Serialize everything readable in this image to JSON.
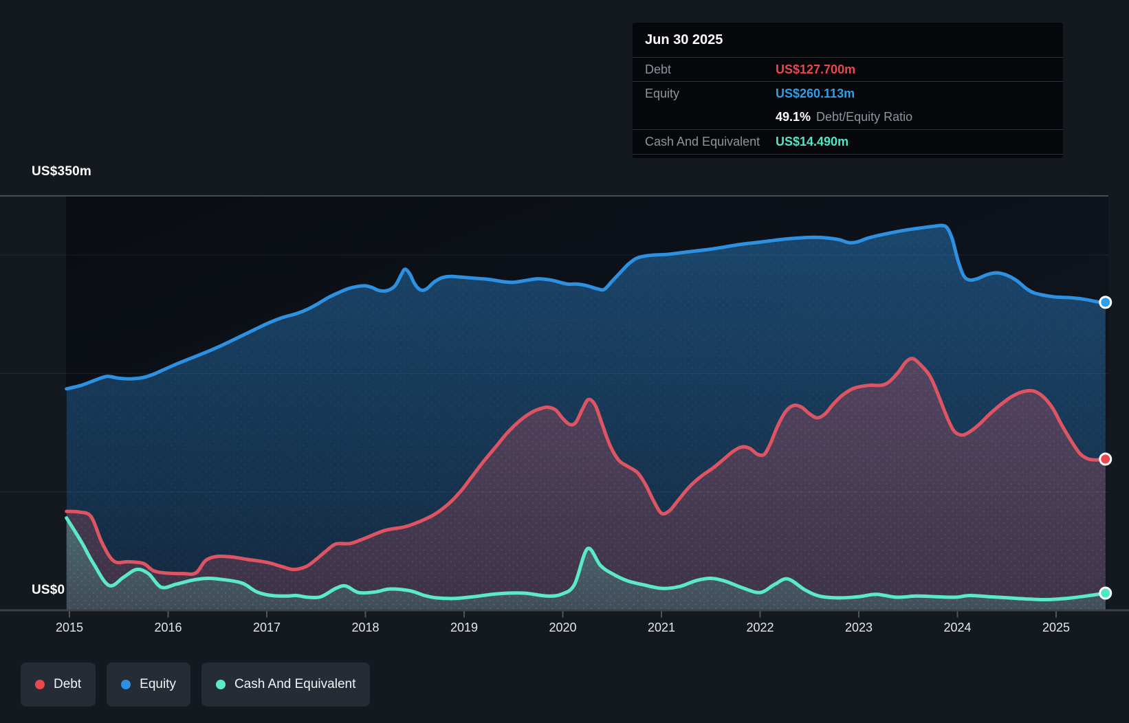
{
  "y_axis": {
    "top_label": "US$350m",
    "bottom_label": "US$0"
  },
  "x_axis": {
    "labels": [
      "2015",
      "2016",
      "2017",
      "2018",
      "2019",
      "2020",
      "2021",
      "2022",
      "2023",
      "2024",
      "2025"
    ]
  },
  "tooltip": {
    "date": "Jun 30 2025",
    "debt_label": "Debt",
    "debt_value": "US$127.700m",
    "equity_label": "Equity",
    "equity_value": "US$260.113m",
    "ratio_value": "49.1%",
    "ratio_label": "Debt/Equity Ratio",
    "cash_label": "Cash And Equivalent",
    "cash_value": "US$14.490m"
  },
  "legend": {
    "debt": "Debt",
    "equity": "Equity",
    "cash": "Cash And Equivalent"
  },
  "colors": {
    "page_bg": "#14191f",
    "plot_bg_top": "#0a0d13",
    "plot_bg_bottom": "#111722",
    "debt_line": "#dd5462",
    "debt_accent": "#e8484e",
    "equity_line": "#2e90e0",
    "equity_accent": "#2f9fe8",
    "cash_line": "#5ce9c7",
    "cash_accent": "#4ce9c4",
    "grid_faint": "rgba(205,216,230,0.09)",
    "grid_top": "#454c55",
    "axis_line": "#3b424a",
    "tick": "#4d545c"
  },
  "chart_data": {
    "type": "area",
    "x_domain": [
      2015,
      2025.5
    ],
    "y_domain": [
      0,
      350
    ],
    "y_unit": "US$m",
    "y_top_labeled_line": 350,
    "y_gridlines": [
      100,
      200,
      300
    ],
    "x_ticks": [
      2015,
      2016,
      2017,
      2018,
      2019,
      2020,
      2021,
      2022,
      2023,
      2024,
      2025
    ],
    "legend_position": "bottom-left",
    "series": [
      {
        "name": "Equity",
        "color": "#2e90e0",
        "end_value": 260.113,
        "points": [
          [
            2014.97,
            187
          ],
          [
            2015.12,
            190
          ],
          [
            2015.25,
            194
          ],
          [
            2015.38,
            197.5
          ],
          [
            2015.5,
            196
          ],
          [
            2015.62,
            195.5
          ],
          [
            2015.74,
            196.5
          ],
          [
            2015.84,
            199
          ],
          [
            2015.95,
            203
          ],
          [
            2016.1,
            208.5
          ],
          [
            2016.25,
            213.5
          ],
          [
            2016.4,
            218.5
          ],
          [
            2016.55,
            224
          ],
          [
            2016.7,
            230
          ],
          [
            2016.85,
            236
          ],
          [
            2017.0,
            242
          ],
          [
            2017.15,
            247
          ],
          [
            2017.3,
            250.5
          ],
          [
            2017.42,
            254.5
          ],
          [
            2017.52,
            259
          ],
          [
            2017.62,
            264
          ],
          [
            2017.72,
            268
          ],
          [
            2017.82,
            271.5
          ],
          [
            2017.92,
            273.5
          ],
          [
            2018.0,
            274
          ],
          [
            2018.07,
            272.5
          ],
          [
            2018.14,
            270
          ],
          [
            2018.22,
            270
          ],
          [
            2018.3,
            274
          ],
          [
            2018.36,
            283
          ],
          [
            2018.4,
            288
          ],
          [
            2018.45,
            284
          ],
          [
            2018.5,
            275.5
          ],
          [
            2018.56,
            270.5
          ],
          [
            2018.62,
            271.5
          ],
          [
            2018.7,
            277.5
          ],
          [
            2018.78,
            281
          ],
          [
            2018.86,
            282
          ],
          [
            2018.95,
            281.5
          ],
          [
            2019.1,
            280.5
          ],
          [
            2019.25,
            279.5
          ],
          [
            2019.4,
            277.5
          ],
          [
            2019.5,
            277
          ],
          [
            2019.62,
            278.5
          ],
          [
            2019.75,
            280
          ],
          [
            2019.87,
            279
          ],
          [
            2019.95,
            277.5
          ],
          [
            2020.05,
            275.5
          ],
          [
            2020.15,
            275.5
          ],
          [
            2020.25,
            274
          ],
          [
            2020.35,
            271.5
          ],
          [
            2020.42,
            271
          ],
          [
            2020.5,
            278
          ],
          [
            2020.58,
            285
          ],
          [
            2020.66,
            292
          ],
          [
            2020.74,
            297
          ],
          [
            2020.82,
            299
          ],
          [
            2020.92,
            300
          ],
          [
            2021.05,
            300.5
          ],
          [
            2021.2,
            302
          ],
          [
            2021.35,
            303.5
          ],
          [
            2021.5,
            305
          ],
          [
            2021.65,
            307
          ],
          [
            2021.8,
            309
          ],
          [
            2021.95,
            310.5
          ],
          [
            2022.1,
            312
          ],
          [
            2022.25,
            313.5
          ],
          [
            2022.4,
            314.5
          ],
          [
            2022.55,
            315
          ],
          [
            2022.68,
            314.5
          ],
          [
            2022.8,
            313
          ],
          [
            2022.9,
            310.5
          ],
          [
            2022.98,
            311
          ],
          [
            2023.1,
            314.5
          ],
          [
            2023.25,
            317.5
          ],
          [
            2023.4,
            320
          ],
          [
            2023.55,
            322
          ],
          [
            2023.68,
            323.5
          ],
          [
            2023.78,
            324.5
          ],
          [
            2023.85,
            325
          ],
          [
            2023.9,
            322.5
          ],
          [
            2023.95,
            313
          ],
          [
            2024.0,
            297
          ],
          [
            2024.06,
            283
          ],
          [
            2024.12,
            279
          ],
          [
            2024.2,
            280
          ],
          [
            2024.3,
            283.5
          ],
          [
            2024.4,
            285
          ],
          [
            2024.5,
            283
          ],
          [
            2024.6,
            278.5
          ],
          [
            2024.7,
            271.5
          ],
          [
            2024.78,
            268
          ],
          [
            2024.88,
            266
          ],
          [
            2025.0,
            264.5
          ],
          [
            2025.15,
            264
          ],
          [
            2025.3,
            262.5
          ],
          [
            2025.42,
            260.5
          ],
          [
            2025.5,
            260.113
          ]
        ]
      },
      {
        "name": "Debt",
        "color": "#dd5462",
        "end_value": 127.7,
        "points": [
          [
            2014.97,
            83.5
          ],
          [
            2015.1,
            83
          ],
          [
            2015.22,
            79
          ],
          [
            2015.33,
            57
          ],
          [
            2015.45,
            41.5
          ],
          [
            2015.6,
            41
          ],
          [
            2015.75,
            39.5
          ],
          [
            2015.85,
            33.5
          ],
          [
            2015.97,
            31.5
          ],
          [
            2016.15,
            31
          ],
          [
            2016.28,
            31.5
          ],
          [
            2016.38,
            42
          ],
          [
            2016.5,
            45.5
          ],
          [
            2016.65,
            45
          ],
          [
            2016.8,
            43
          ],
          [
            2017.0,
            40.5
          ],
          [
            2017.15,
            37
          ],
          [
            2017.27,
            34.5
          ],
          [
            2017.4,
            37
          ],
          [
            2017.5,
            43
          ],
          [
            2017.6,
            50
          ],
          [
            2017.7,
            56
          ],
          [
            2017.85,
            56.5
          ],
          [
            2018.0,
            61
          ],
          [
            2018.2,
            67.5
          ],
          [
            2018.4,
            70.5
          ],
          [
            2018.55,
            75
          ],
          [
            2018.7,
            81
          ],
          [
            2018.85,
            90.5
          ],
          [
            2018.97,
            101
          ],
          [
            2019.08,
            113
          ],
          [
            2019.2,
            126
          ],
          [
            2019.33,
            139
          ],
          [
            2019.45,
            151
          ],
          [
            2019.57,
            160.5
          ],
          [
            2019.68,
            167
          ],
          [
            2019.78,
            170.5
          ],
          [
            2019.85,
            171.5
          ],
          [
            2019.93,
            169
          ],
          [
            2020.0,
            162
          ],
          [
            2020.07,
            157
          ],
          [
            2020.13,
            158.5
          ],
          [
            2020.2,
            170
          ],
          [
            2020.26,
            178
          ],
          [
            2020.33,
            173
          ],
          [
            2020.4,
            157
          ],
          [
            2020.48,
            139
          ],
          [
            2020.57,
            126.5
          ],
          [
            2020.67,
            121
          ],
          [
            2020.76,
            116
          ],
          [
            2020.84,
            106
          ],
          [
            2020.92,
            92.5
          ],
          [
            2021.0,
            82
          ],
          [
            2021.08,
            84
          ],
          [
            2021.17,
            93
          ],
          [
            2021.28,
            104
          ],
          [
            2021.4,
            113
          ],
          [
            2021.52,
            120
          ],
          [
            2021.63,
            127.5
          ],
          [
            2021.73,
            134.5
          ],
          [
            2021.82,
            138
          ],
          [
            2021.9,
            136.5
          ],
          [
            2021.97,
            132
          ],
          [
            2022.04,
            131.5
          ],
          [
            2022.1,
            140
          ],
          [
            2022.18,
            156
          ],
          [
            2022.26,
            168
          ],
          [
            2022.34,
            173
          ],
          [
            2022.42,
            171.5
          ],
          [
            2022.5,
            166
          ],
          [
            2022.58,
            162.5
          ],
          [
            2022.66,
            166
          ],
          [
            2022.74,
            174
          ],
          [
            2022.84,
            182
          ],
          [
            2022.95,
            187.5
          ],
          [
            2023.1,
            190
          ],
          [
            2023.22,
            190
          ],
          [
            2023.3,
            192.5
          ],
          [
            2023.4,
            201
          ],
          [
            2023.48,
            210
          ],
          [
            2023.55,
            212.5
          ],
          [
            2023.63,
            207
          ],
          [
            2023.72,
            198
          ],
          [
            2023.8,
            183
          ],
          [
            2023.88,
            166
          ],
          [
            2023.96,
            152
          ],
          [
            2024.04,
            148
          ],
          [
            2024.12,
            150.5
          ],
          [
            2024.22,
            157
          ],
          [
            2024.33,
            166
          ],
          [
            2024.45,
            174.5
          ],
          [
            2024.56,
            181
          ],
          [
            2024.68,
            185
          ],
          [
            2024.78,
            185
          ],
          [
            2024.88,
            179.5
          ],
          [
            2024.97,
            170
          ],
          [
            2025.06,
            156
          ],
          [
            2025.15,
            143.5
          ],
          [
            2025.24,
            132.5
          ],
          [
            2025.32,
            128
          ],
          [
            2025.4,
            127
          ],
          [
            2025.5,
            127.7
          ]
        ]
      },
      {
        "name": "Cash And Equivalent",
        "color": "#5ce9c7",
        "end_value": 14.49,
        "points": [
          [
            2014.97,
            78
          ],
          [
            2015.12,
            58
          ],
          [
            2015.24,
            40
          ],
          [
            2015.4,
            21
          ],
          [
            2015.55,
            28
          ],
          [
            2015.68,
            34.5
          ],
          [
            2015.8,
            31
          ],
          [
            2015.93,
            19.5
          ],
          [
            2016.08,
            22
          ],
          [
            2016.25,
            25.5
          ],
          [
            2016.4,
            27
          ],
          [
            2016.55,
            26
          ],
          [
            2016.75,
            23
          ],
          [
            2016.9,
            15.5
          ],
          [
            2017.05,
            12.5
          ],
          [
            2017.2,
            12
          ],
          [
            2017.3,
            12.5
          ],
          [
            2017.42,
            11
          ],
          [
            2017.55,
            11.5
          ],
          [
            2017.7,
            18.5
          ],
          [
            2017.8,
            20.5
          ],
          [
            2017.93,
            15
          ],
          [
            2018.1,
            15.5
          ],
          [
            2018.25,
            18
          ],
          [
            2018.45,
            16.5
          ],
          [
            2018.6,
            12.5
          ],
          [
            2018.72,
            10.5
          ],
          [
            2018.9,
            10
          ],
          [
            2019.1,
            11.5
          ],
          [
            2019.35,
            14
          ],
          [
            2019.6,
            14.5
          ],
          [
            2019.85,
            12
          ],
          [
            2020.0,
            14
          ],
          [
            2020.12,
            22
          ],
          [
            2020.25,
            52
          ],
          [
            2020.38,
            38
          ],
          [
            2020.5,
            31
          ],
          [
            2020.65,
            25
          ],
          [
            2020.82,
            21.5
          ],
          [
            2021.0,
            18.5
          ],
          [
            2021.18,
            20
          ],
          [
            2021.35,
            25
          ],
          [
            2021.5,
            27
          ],
          [
            2021.65,
            24.5
          ],
          [
            2021.82,
            19
          ],
          [
            2022.0,
            15
          ],
          [
            2022.15,
            22
          ],
          [
            2022.28,
            26.5
          ],
          [
            2022.45,
            17.5
          ],
          [
            2022.6,
            12
          ],
          [
            2022.8,
            10.5
          ],
          [
            2023.0,
            11.5
          ],
          [
            2023.18,
            13.5
          ],
          [
            2023.38,
            11
          ],
          [
            2023.58,
            12
          ],
          [
            2023.78,
            11.5
          ],
          [
            2023.98,
            11
          ],
          [
            2024.12,
            12.5
          ],
          [
            2024.32,
            11.5
          ],
          [
            2024.52,
            10.5
          ],
          [
            2024.72,
            9.5
          ],
          [
            2024.9,
            9
          ],
          [
            2025.1,
            10
          ],
          [
            2025.3,
            12
          ],
          [
            2025.5,
            14.49
          ]
        ]
      }
    ]
  }
}
